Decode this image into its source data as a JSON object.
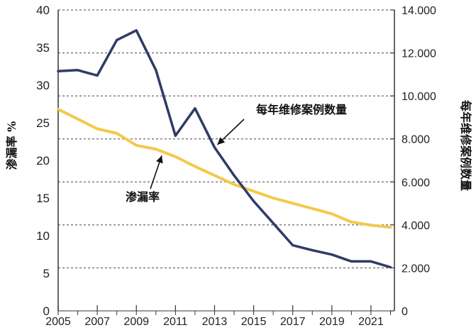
{
  "chart_data": {
    "type": "line",
    "title": "",
    "x": [
      2005,
      2006,
      2007,
      2008,
      2009,
      2010,
      2011,
      2012,
      2013,
      2014,
      2015,
      2016,
      2017,
      2018,
      2019,
      2020,
      2021,
      2022
    ],
    "x_ticks": [
      "2005",
      "2007",
      "2009",
      "2011",
      "2013",
      "2015",
      "2017",
      "2019",
      "2021"
    ],
    "xlim": [
      2005,
      2022.2
    ],
    "y_left": {
      "label": "渗漏率 %",
      "ylim": [
        0,
        40
      ],
      "ticks": [
        "0",
        "5",
        "10",
        "15",
        "20",
        "25",
        "30",
        "35",
        "40"
      ]
    },
    "y_right": {
      "label": "每年维修案例数量",
      "ylim": [
        0,
        14000
      ],
      "ticks": [
        "0",
        "2.000",
        "4.000",
        "6.000",
        "8.000",
        "10.000",
        "12.000",
        "14.000"
      ]
    },
    "grid": "horizontal dotted",
    "series": [
      {
        "name": "每年维修案例数量",
        "axis": "right",
        "color": "#2f3b66",
        "values": [
          11150,
          11200,
          10950,
          12600,
          13050,
          11200,
          8150,
          9420,
          7600,
          6300,
          5100,
          4080,
          3050,
          2820,
          2620,
          2300,
          2300,
          2030
        ]
      },
      {
        "name": "渗漏率",
        "axis": "left",
        "color": "#f2c94c",
        "values": [
          26.8,
          25.5,
          24.2,
          23.6,
          22.0,
          21.5,
          20.5,
          19.2,
          18.0,
          16.8,
          15.9,
          15.0,
          14.3,
          13.6,
          12.9,
          11.8,
          11.4,
          11.1
        ]
      }
    ],
    "annotations": [
      {
        "text": "每年维修案例数量",
        "series": "每年维修案例数量",
        "target_x": 2013.0
      },
      {
        "text": "渗漏率",
        "series": "渗漏率",
        "target_x": 2010.3
      }
    ]
  }
}
